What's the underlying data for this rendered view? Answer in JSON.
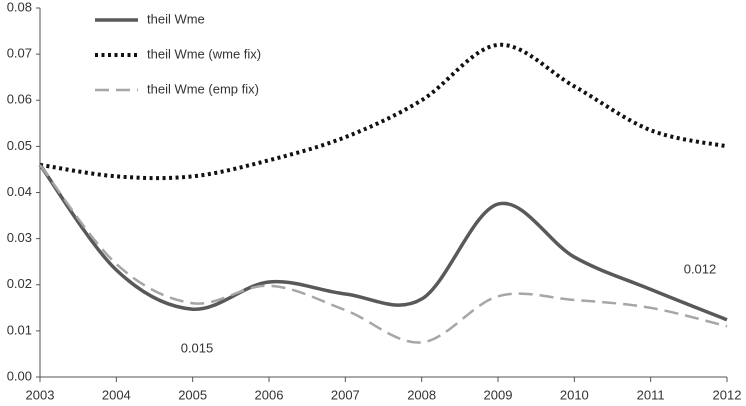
{
  "chart_data": {
    "type": "line",
    "x": [
      2003,
      2004,
      2005,
      2006,
      2007,
      2008,
      2009,
      2010,
      2011,
      2012
    ],
    "xlim": [
      2003,
      2012
    ],
    "xticks": [
      2003,
      2004,
      2005,
      2006,
      2007,
      2008,
      2009,
      2010,
      2011,
      2012
    ],
    "ylim": [
      0,
      0.08
    ],
    "yticks": [
      {
        "value": 0,
        "label": "0.00"
      },
      0.01,
      0.02,
      0.03,
      0.04,
      0.05,
      0.06,
      0.07,
      0.08
    ],
    "grid": false,
    "legend": "top-left",
    "series": [
      {
        "name": "theil Wme",
        "color": "#595959",
        "line_style": "solid",
        "values": [
          0.046,
          0.0232,
          0.0147,
          0.0206,
          0.018,
          0.0169,
          0.0375,
          0.026,
          0.019,
          0.0124
        ]
      },
      {
        "name": "theil Wme (wme fix)",
        "color": "#111111",
        "line_style": "dotted",
        "values": [
          0.046,
          0.0435,
          0.0435,
          0.047,
          0.052,
          0.06,
          0.072,
          0.063,
          0.0535,
          0.05
        ]
      },
      {
        "name": "theil Wme (emp fix)",
        "color": "#a6a6a6",
        "line_style": "dashed",
        "values": [
          0.046,
          0.0245,
          0.016,
          0.0198,
          0.0145,
          0.0075,
          0.0175,
          0.0167,
          0.015,
          0.011
        ]
      }
    ],
    "annotations": [
      "0.015",
      "0.012"
    ]
  }
}
